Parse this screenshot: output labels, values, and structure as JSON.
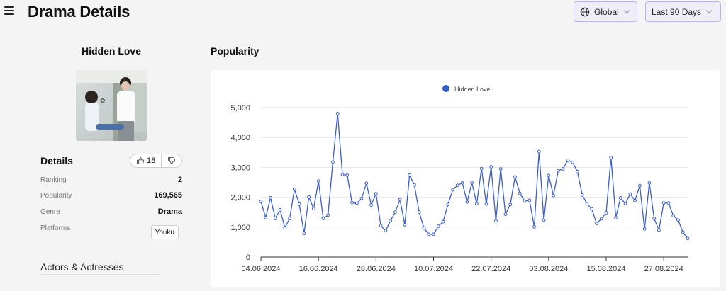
{
  "header": {
    "title": "Drama Details",
    "region": "Global",
    "range": "Last 90 Days"
  },
  "drama": {
    "title": "Hidden Love",
    "poster_caption": ""
  },
  "details": {
    "heading": "Details",
    "likes": "18",
    "rows": [
      {
        "label": "Ranking",
        "value": "2"
      },
      {
        "label": "Popularity",
        "value": "169,565"
      },
      {
        "label": "Genre",
        "value": "Drama"
      },
      {
        "label": "Platforms",
        "value": "Youku"
      }
    ]
  },
  "actors": {
    "heading": "Actors & Actresses"
  },
  "popularity": {
    "heading": "Popularity"
  },
  "colors": {
    "accent": "#3b5fc8",
    "select_border": "#b9b4e8"
  },
  "chart_data": {
    "type": "line",
    "title": "",
    "legend_position": "top-center",
    "series": [
      {
        "name": "Hidden Love",
        "color": "#3b5fc8",
        "values": [
          1860,
          1320,
          1980,
          1290,
          1580,
          980,
          1290,
          2270,
          1770,
          790,
          2010,
          1620,
          2540,
          1290,
          1400,
          3180,
          4800,
          2760,
          2740,
          1820,
          1800,
          1960,
          2470,
          1740,
          2120,
          1050,
          880,
          1210,
          1500,
          1920,
          1080,
          2740,
          2410,
          1500,
          970,
          760,
          760,
          1030,
          1180,
          1760,
          2250,
          2400,
          2480,
          1840,
          2490,
          1780,
          2960,
          1770,
          3020,
          1210,
          2950,
          1430,
          1760,
          2680,
          2130,
          1870,
          1900,
          1010,
          3530,
          1230,
          2730,
          2060,
          2890,
          2950,
          3240,
          3170,
          2860,
          2080,
          1780,
          1610,
          1120,
          1280,
          1480,
          3330,
          1320,
          1980,
          1780,
          2110,
          1890,
          2390,
          940,
          2480,
          1290,
          900,
          1810,
          1810,
          1380,
          1240,
          830,
          620
        ]
      }
    ],
    "x_ticks": [
      "04.06.2024",
      "16.06.2024",
      "28.06.2024",
      "10.07.2024",
      "22.07.2024",
      "03.08.2024",
      "15.08.2024",
      "27.08.2024"
    ],
    "y_ticks": [
      "0",
      "1,000",
      "2,000",
      "3,000",
      "4,000",
      "5,000"
    ],
    "ylim": [
      0,
      5000
    ],
    "grid": "horizontal"
  }
}
